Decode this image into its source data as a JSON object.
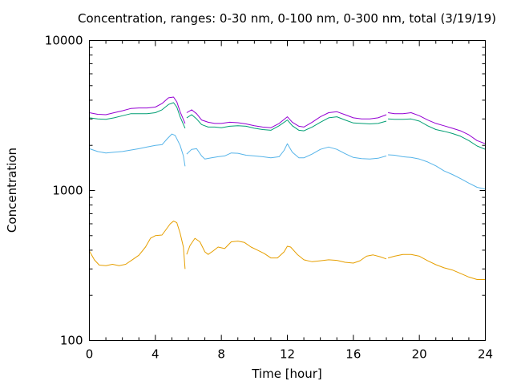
{
  "chart_data": {
    "type": "line",
    "title": "Concentration, ranges: 0-30 nm, 0-100 nm, 0-300 nm, total (3/19/19)",
    "xlabel": "Time [hour]",
    "ylabel": "Concentration",
    "xlim": [
      0,
      24
    ],
    "ylim": [
      100,
      10000
    ],
    "y_scale": "log",
    "grid": false,
    "x_ticks": [
      0,
      4,
      8,
      12,
      16,
      20,
      24
    ],
    "x_tick_labels": [
      "0",
      "4",
      "8",
      "12",
      "16",
      "20",
      "24"
    ],
    "y_ticks": [
      100,
      1000,
      10000
    ],
    "y_tick_labels": [
      "100",
      "1000",
      "10000"
    ],
    "series": [
      {
        "color": "#e69f00",
        "segments": [
          [
            [
              0,
              395
            ],
            [
              0.3,
              345
            ],
            [
              0.6,
              318
            ],
            [
              1,
              315
            ],
            [
              1.4,
              322
            ],
            [
              1.8,
              315
            ],
            [
              2.2,
              322
            ],
            [
              2.6,
              345
            ],
            [
              3,
              370
            ],
            [
              3.4,
              420
            ],
            [
              3.7,
              480
            ],
            [
              4,
              500
            ],
            [
              4.4,
              505
            ],
            [
              4.6,
              540
            ],
            [
              4.9,
              600
            ],
            [
              5.1,
              625
            ],
            [
              5.3,
              610
            ],
            [
              5.5,
              520
            ],
            [
              5.7,
              420
            ],
            [
              5.8,
              300
            ]
          ],
          [
            [
              5.9,
              375
            ],
            [
              6.1,
              430
            ],
            [
              6.4,
              480
            ],
            [
              6.7,
              455
            ],
            [
              7,
              390
            ],
            [
              7.2,
              375
            ],
            [
              7.5,
              395
            ],
            [
              7.8,
              420
            ],
            [
              8.2,
              410
            ],
            [
              8.6,
              455
            ],
            [
              9,
              460
            ],
            [
              9.4,
              450
            ],
            [
              9.8,
              420
            ],
            [
              10.2,
              400
            ],
            [
              10.6,
              380
            ],
            [
              11,
              355
            ],
            [
              11.4,
              355
            ],
            [
              11.8,
              390
            ],
            [
              12,
              425
            ],
            [
              12.2,
              420
            ],
            [
              12.6,
              375
            ],
            [
              13,
              345
            ],
            [
              13.5,
              335
            ],
            [
              14,
              340
            ],
            [
              14.5,
              345
            ],
            [
              15,
              342
            ],
            [
              15.5,
              332
            ],
            [
              16,
              328
            ],
            [
              16.4,
              340
            ],
            [
              16.8,
              365
            ],
            [
              17.2,
              372
            ],
            [
              17.6,
              362
            ],
            [
              18,
              350
            ]
          ],
          [
            [
              18.1,
              355
            ],
            [
              18.5,
              365
            ],
            [
              19,
              375
            ],
            [
              19.5,
              375
            ],
            [
              20,
              365
            ],
            [
              20.5,
              340
            ],
            [
              21,
              320
            ],
            [
              21.5,
              305
            ],
            [
              22,
              295
            ],
            [
              22.5,
              280
            ],
            [
              23,
              265
            ],
            [
              23.5,
              255
            ],
            [
              24,
              255
            ]
          ]
        ]
      },
      {
        "color": "#56b4e9",
        "segments": [
          [
            [
              0,
              1900
            ],
            [
              0.5,
              1820
            ],
            [
              1,
              1780
            ],
            [
              1.5,
              1800
            ],
            [
              2,
              1820
            ],
            [
              2.5,
              1860
            ],
            [
              3,
              1900
            ],
            [
              3.5,
              1950
            ],
            [
              4,
              2000
            ],
            [
              4.4,
              2020
            ],
            [
              4.7,
              2200
            ],
            [
              5,
              2380
            ],
            [
              5.2,
              2330
            ],
            [
              5.5,
              2000
            ],
            [
              5.7,
              1700
            ],
            [
              5.8,
              1450
            ]
          ],
          [
            [
              5.9,
              1750
            ],
            [
              6.2,
              1880
            ],
            [
              6.5,
              1900
            ],
            [
              6.8,
              1700
            ],
            [
              7,
              1620
            ],
            [
              7.4,
              1650
            ],
            [
              7.8,
              1680
            ],
            [
              8.2,
              1700
            ],
            [
              8.6,
              1780
            ],
            [
              9,
              1770
            ],
            [
              9.5,
              1720
            ],
            [
              10,
              1700
            ],
            [
              10.5,
              1680
            ],
            [
              11,
              1650
            ],
            [
              11.5,
              1680
            ],
            [
              11.8,
              1850
            ],
            [
              12,
              2050
            ],
            [
              12.3,
              1800
            ],
            [
              12.7,
              1650
            ],
            [
              13,
              1650
            ],
            [
              13.5,
              1750
            ],
            [
              14,
              1880
            ],
            [
              14.5,
              1950
            ],
            [
              15,
              1880
            ],
            [
              15.5,
              1760
            ],
            [
              16,
              1660
            ],
            [
              16.5,
              1630
            ],
            [
              17,
              1620
            ],
            [
              17.5,
              1640
            ],
            [
              18,
              1700
            ]
          ],
          [
            [
              18.1,
              1730
            ],
            [
              18.5,
              1720
            ],
            [
              19,
              1680
            ],
            [
              19.5,
              1660
            ],
            [
              20,
              1620
            ],
            [
              20.5,
              1550
            ],
            [
              21,
              1460
            ],
            [
              21.5,
              1350
            ],
            [
              22,
              1280
            ],
            [
              22.5,
              1200
            ],
            [
              23,
              1120
            ],
            [
              23.5,
              1050
            ],
            [
              24,
              1020
            ]
          ]
        ]
      },
      {
        "color": "#009e73",
        "segments": [
          [
            [
              0,
              3050
            ],
            [
              0.5,
              3000
            ],
            [
              1,
              2980
            ],
            [
              1.5,
              3050
            ],
            [
              2,
              3150
            ],
            [
              2.5,
              3250
            ],
            [
              3,
              3250
            ],
            [
              3.5,
              3250
            ],
            [
              4,
              3300
            ],
            [
              4.4,
              3450
            ],
            [
              4.8,
              3750
            ],
            [
              5.1,
              3850
            ],
            [
              5.3,
              3600
            ],
            [
              5.5,
              3100
            ],
            [
              5.8,
              2600
            ]
          ],
          [
            [
              5.9,
              3050
            ],
            [
              6.2,
              3200
            ],
            [
              6.5,
              3000
            ],
            [
              6.8,
              2750
            ],
            [
              7.2,
              2650
            ],
            [
              7.6,
              2650
            ],
            [
              8,
              2620
            ],
            [
              8.5,
              2680
            ],
            [
              9,
              2700
            ],
            [
              9.5,
              2680
            ],
            [
              10,
              2600
            ],
            [
              10.5,
              2550
            ],
            [
              11,
              2520
            ],
            [
              11.5,
              2700
            ],
            [
              12,
              2950
            ],
            [
              12.3,
              2700
            ],
            [
              12.7,
              2520
            ],
            [
              13,
              2500
            ],
            [
              13.5,
              2650
            ],
            [
              14,
              2850
            ],
            [
              14.5,
              3050
            ],
            [
              15,
              3100
            ],
            [
              15.5,
              2950
            ],
            [
              16,
              2820
            ],
            [
              16.5,
              2800
            ],
            [
              17,
              2780
            ],
            [
              17.5,
              2800
            ],
            [
              18,
              2900
            ]
          ],
          [
            [
              18.1,
              3000
            ],
            [
              18.5,
              2980
            ],
            [
              19,
              2980
            ],
            [
              19.5,
              3000
            ],
            [
              20,
              2900
            ],
            [
              20.5,
              2700
            ],
            [
              21,
              2550
            ],
            [
              21.5,
              2480
            ],
            [
              22,
              2400
            ],
            [
              22.5,
              2300
            ],
            [
              23,
              2150
            ],
            [
              23.5,
              1980
            ],
            [
              24,
              1880
            ]
          ]
        ]
      },
      {
        "color": "#9400d3",
        "segments": [
          [
            [
              0,
              3300
            ],
            [
              0.5,
              3220
            ],
            [
              1,
              3200
            ],
            [
              1.5,
              3300
            ],
            [
              2,
              3400
            ],
            [
              2.5,
              3520
            ],
            [
              3,
              3550
            ],
            [
              3.5,
              3550
            ],
            [
              4,
              3600
            ],
            [
              4.4,
              3800
            ],
            [
              4.8,
              4150
            ],
            [
              5.1,
              4200
            ],
            [
              5.3,
              3900
            ],
            [
              5.5,
              3350
            ],
            [
              5.8,
              2800
            ]
          ],
          [
            [
              5.9,
              3300
            ],
            [
              6.2,
              3450
            ],
            [
              6.5,
              3250
            ],
            [
              6.8,
              2950
            ],
            [
              7.2,
              2850
            ],
            [
              7.6,
              2800
            ],
            [
              8,
              2800
            ],
            [
              8.5,
              2850
            ],
            [
              9,
              2830
            ],
            [
              9.5,
              2780
            ],
            [
              10,
              2700
            ],
            [
              10.5,
              2650
            ],
            [
              11,
              2620
            ],
            [
              11.5,
              2800
            ],
            [
              12,
              3100
            ],
            [
              12.3,
              2850
            ],
            [
              12.7,
              2680
            ],
            [
              13,
              2650
            ],
            [
              13.5,
              2850
            ],
            [
              14,
              3100
            ],
            [
              14.5,
              3300
            ],
            [
              15,
              3350
            ],
            [
              15.5,
              3200
            ],
            [
              16,
              3050
            ],
            [
              16.5,
              3000
            ],
            [
              17,
              3000
            ],
            [
              17.5,
              3050
            ],
            [
              18,
              3200
            ]
          ],
          [
            [
              18.1,
              3300
            ],
            [
              18.5,
              3250
            ],
            [
              19,
              3250
            ],
            [
              19.5,
              3300
            ],
            [
              20,
              3150
            ],
            [
              20.5,
              2950
            ],
            [
              21,
              2800
            ],
            [
              21.5,
              2700
            ],
            [
              22,
              2600
            ],
            [
              22.5,
              2500
            ],
            [
              23,
              2350
            ],
            [
              23.5,
              2150
            ],
            [
              24,
              2050
            ]
          ]
        ]
      }
    ]
  }
}
